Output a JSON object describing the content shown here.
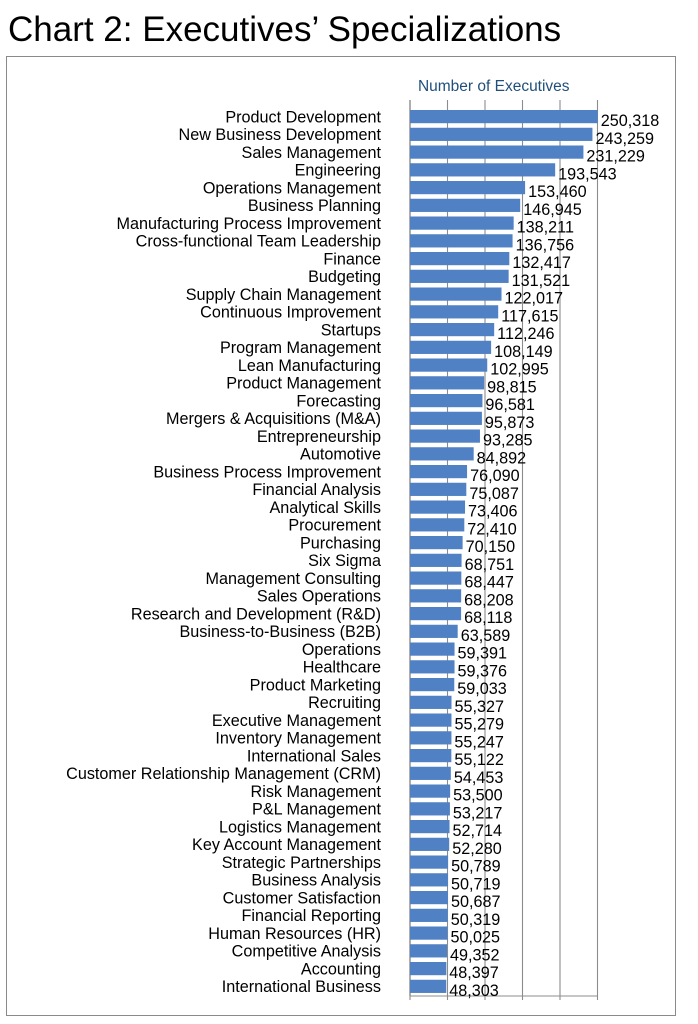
{
  "page": {
    "title": "Chart 2: Executives’ Specializations"
  },
  "chart_data": {
    "type": "bar",
    "orientation": "horizontal",
    "title": "Chart 2: Executives’ Specializations",
    "xlabel": "",
    "ylabel": "",
    "xlim": [
      0,
      250000
    ],
    "grid": true,
    "legend_placement": "top",
    "bar_color": "#4f81c4",
    "grid_color": "#8c8c8c",
    "legend_color": "#1f4f7a",
    "series": [
      {
        "name": "Number of Executives"
      }
    ],
    "categories": [
      "Product Development",
      "New Business Development",
      "Sales Management",
      "Engineering",
      "Operations Management",
      "Business Planning",
      "Manufacturing Process Improvement",
      "Cross-functional Team Leadership",
      "Finance",
      "Budgeting",
      "Supply Chain Management",
      "Continuous Improvement",
      "Startups",
      "Program Management",
      "Lean Manufacturing",
      "Product Management",
      "Forecasting",
      "Mergers & Acquisitions (M&A)",
      "Entrepreneurship",
      "Automotive",
      "Business Process Improvement",
      "Financial Analysis",
      "Analytical Skills",
      "Procurement",
      "Purchasing",
      "Six Sigma",
      "Management Consulting",
      "Sales Operations",
      "Research and Development (R&D)",
      "Business-to-Business (B2B)",
      "Operations",
      "Healthcare",
      "Product Marketing",
      "Recruiting",
      "Executive Management",
      "Inventory Management",
      "International Sales",
      "Customer Relationship Management (CRM)",
      "Risk Management",
      "P&L Management",
      "Logistics Management",
      "Key Account Management",
      "Strategic Partnerships",
      "Business Analysis",
      "Customer Satisfaction",
      "Financial Reporting",
      "Human Resources (HR)",
      "Competitive Analysis",
      "Accounting",
      "International Business"
    ],
    "values": [
      250318,
      243259,
      231229,
      193543,
      153460,
      146945,
      138211,
      136756,
      132417,
      131521,
      122017,
      117615,
      112246,
      108149,
      102995,
      98815,
      96581,
      95873,
      93285,
      84892,
      76090,
      75087,
      73406,
      72410,
      70150,
      68751,
      68447,
      68208,
      68118,
      63589,
      59391,
      59376,
      59033,
      55327,
      55279,
      55247,
      55122,
      54453,
      53500,
      53217,
      52714,
      52280,
      50789,
      50719,
      50687,
      50319,
      50025,
      49352,
      48397,
      48303
    ],
    "value_labels": [
      "250,318",
      "243,259",
      "231,229",
      "193,543",
      "153,460",
      "146,945",
      "138,211",
      "136,756",
      "132,417",
      "131,521",
      "122,017",
      "117,615",
      "112,246",
      "108,149",
      "102,995",
      "98,815",
      "96,581",
      "95,873",
      "93,285",
      "84,892",
      "76,090",
      "75,087",
      "73,406",
      "72,410",
      "70,150",
      "68,751",
      "68,447",
      "68,208",
      "68,118",
      "63,589",
      "59,391",
      "59,376",
      "59,033",
      "55,327",
      "55,279",
      "55,247",
      "55,122",
      "54,453",
      "53,500",
      "53,217",
      "52,714",
      "52,280",
      "50,789",
      "50,719",
      "50,687",
      "50,319",
      "50,025",
      "49,352",
      "48,397",
      "48,303"
    ]
  }
}
